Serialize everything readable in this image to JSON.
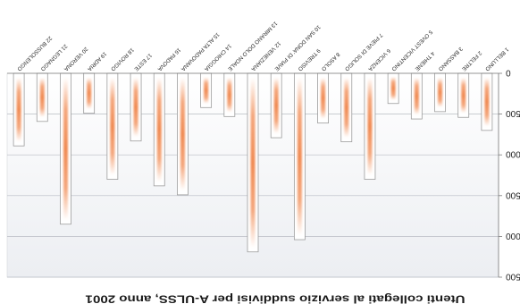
{
  "chart_data": {
    "type": "bar",
    "title": "Utenti collegati al servizio suddivisi per A-ULSS, anno 2001",
    "xlabel": "",
    "ylabel": "",
    "categories": [
      "1 BELLUNO",
      "2 FELTRE",
      "3 BASSANO",
      "4 THIENE",
      "5 OVEST VICENTINO",
      "6 VICENZA",
      "7 PIEVE DI SOLIGO",
      "8 ASOLO",
      "9 TREVISO",
      "10 SAN DONA' DI PIAVE",
      "12 VENEZIANA",
      "13 MIRANO DOLO NOALE",
      "14 CHIOGGIA",
      "15 ALTA PADOVANA",
      "16 PADOVA",
      "17 ESTE",
      "18 ROVIGO",
      "19 ADRIA",
      "20 VERONA",
      "21 LEGNAGO",
      "22 BUSSOLENGO"
    ],
    "values": [
      700,
      540,
      470,
      560,
      370,
      1300,
      840,
      610,
      2040,
      790,
      2190,
      530,
      420,
      1490,
      1380,
      830,
      1300,
      490,
      1850,
      590,
      890
    ],
    "ylim": [
      0,
      2500
    ],
    "yticks": [
      0,
      500,
      1000,
      1500,
      2000,
      2500
    ],
    "grid": true,
    "legend": false,
    "colors": {
      "bar_fill": "#ffffff",
      "bar_outline": "#9c9c9c",
      "highlight": "#f08a52",
      "gridline": "#b9bcc4",
      "axis": "#7a7a7a",
      "plot_top": "#eceef2",
      "plot_bottom": "#ffffff"
    }
  }
}
